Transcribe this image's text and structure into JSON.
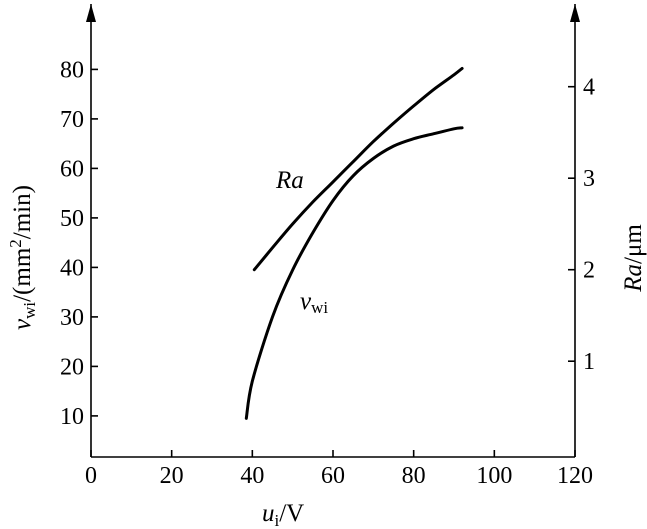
{
  "chart_data": {
    "type": "line",
    "x": {
      "label_main": "u",
      "label_sub": "i",
      "label_unit": "/V",
      "range": [
        0,
        120
      ],
      "ticks": [
        0,
        20,
        40,
        60,
        80,
        100,
        120
      ]
    },
    "y_left": {
      "label_main": "v",
      "label_sub": "wi",
      "label_unit_pre": "/(mm",
      "label_unit_sup": "2",
      "label_unit_post": "/min)",
      "range": [
        0,
        90
      ],
      "ticks": [
        10,
        20,
        30,
        40,
        50,
        60,
        70,
        80
      ]
    },
    "y_right": {
      "label_main": "Ra",
      "label_unit": "/μm",
      "range": [
        0,
        4.8
      ],
      "ticks": [
        1,
        2,
        3,
        4
      ]
    },
    "series": [
      {
        "name": "Ra",
        "axis": "right",
        "label_main": "Ra",
        "label_sub": "",
        "x": [
          40.5,
          45,
          50,
          55,
          60,
          65,
          70,
          75,
          80,
          85,
          90,
          92
        ],
        "y": [
          2.0,
          2.24,
          2.5,
          2.74,
          2.96,
          3.18,
          3.4,
          3.6,
          3.79,
          3.97,
          4.13,
          4.2
        ]
      },
      {
        "name": "v_wi",
        "axis": "left",
        "label_main": "v",
        "label_sub": "wi",
        "x": [
          38.5,
          40,
          45,
          50,
          55,
          60,
          65,
          70,
          75,
          80,
          85,
          90,
          92
        ],
        "y": [
          9.5,
          17,
          30,
          39.5,
          47,
          53.5,
          58.5,
          62,
          64.5,
          66,
          67,
          68,
          68.2
        ]
      }
    ],
    "grid": false,
    "legend": "none"
  }
}
